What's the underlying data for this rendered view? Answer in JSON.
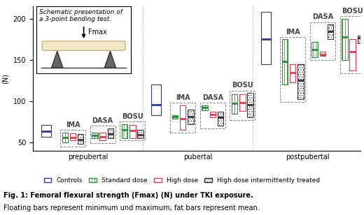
{
  "chart_data": {
    "type": "floating_bar",
    "ylabel": "(N)",
    "ylim": [
      40,
      215
    ],
    "yticks": [
      50,
      100,
      150,
      200
    ],
    "tick_labels": "y",
    "categories": [
      "prepubertal",
      "pubertal",
      "postpubertal"
    ],
    "groups": [
      "IMA",
      "DASA",
      "BOSU"
    ],
    "legend": "lower center",
    "caption_title": "Fig. 1: Femoral flexural strength (Fmax) (N) under TKI exposure.",
    "caption_text": "Floating bars represent minimum und maximum; fat bars represent mean.",
    "inset": {
      "title_lines": [
        "Schematic presentation of",
        "a 3-point bending test."
      ],
      "label": "Fmax"
    },
    "controls": {
      "name": "Controls",
      "color": "#2e3a8c",
      "min": [
        57,
        83,
        145
      ],
      "max": [
        71,
        120,
        208
      ],
      "mean": [
        63,
        96,
        175
      ]
    },
    "series": [
      {
        "name": "Standard dose",
        "color": "#2f8a3a",
        "min": [
          [
            50,
            55,
            55
          ],
          [
            79,
            89,
            85
          ],
          [
            120,
            153,
            150
          ]
        ],
        "max": [
          [
            62,
            62,
            72
          ],
          [
            83,
            95,
            108
          ],
          [
            175,
            172,
            200
          ]
        ],
        "mean": [
          [
            56,
            58,
            65
          ],
          [
            81,
            92,
            97
          ],
          [
            148,
            163,
            178
          ]
        ]
      },
      {
        "name": "High dose",
        "color": "#d63a4e",
        "min": [
          [
            52,
            52,
            55
          ],
          [
            65,
            80,
            88
          ],
          [
            123,
            155,
            137
          ]
        ],
        "max": [
          [
            61,
            62,
            71
          ],
          [
            95,
            87,
            108
          ],
          [
            145,
            160,
            175
          ]
        ],
        "mean": [
          [
            56,
            57,
            64
          ],
          [
            79,
            84,
            98
          ],
          [
            135,
            157,
            160
          ]
        ]
      },
      {
        "name": "High dose intermittently treated",
        "color": "#333333",
        "min": [
          [
            48,
            55,
            55
          ],
          [
            72,
            70,
            80
          ],
          [
            102,
            175,
            170
          ]
        ],
        "max": [
          [
            60,
            67,
            65
          ],
          [
            90,
            87,
            110
          ],
          [
            145,
            193,
            180
          ]
        ],
        "mean": [
          [
            53,
            60,
            59
          ],
          [
            81,
            80,
            96
          ],
          [
            125,
            185,
            177
          ]
        ]
      }
    ]
  }
}
